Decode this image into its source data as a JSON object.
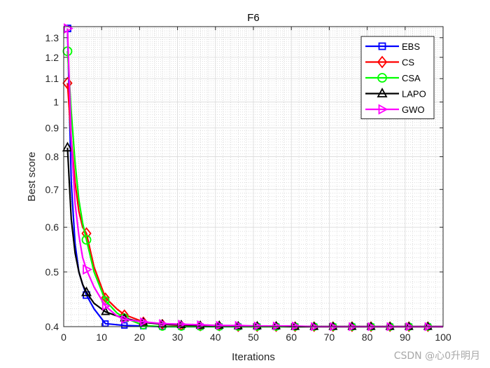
{
  "chart_data": {
    "type": "line",
    "title": "F6",
    "xlabel": "Iterations",
    "ylabel": "Best score",
    "xlim": [
      0,
      100
    ],
    "ylim": [
      0.4,
      1.36
    ],
    "yscale": "log",
    "grid": true,
    "minor_grid": true,
    "legend_position": "top-right",
    "xticks": [
      0,
      10,
      20,
      30,
      40,
      50,
      60,
      70,
      80,
      90,
      100
    ],
    "yticks": [
      0.4,
      0.5,
      0.6,
      0.7,
      0.8,
      0.9,
      1,
      1.1,
      1.2,
      1.3
    ],
    "ytick_labels": [
      "0.4",
      "0.5",
      "0.6",
      "0.7",
      "0.8",
      "0.9",
      "1",
      "1.1",
      "1.2",
      "1.3"
    ],
    "series": [
      {
        "name": "EBS",
        "color": "#0000ff",
        "marker": "square",
        "x": [
          1,
          2,
          3,
          4,
          5,
          6,
          8,
          11,
          16,
          21,
          26,
          31,
          36,
          41,
          46,
          51,
          56,
          61,
          66,
          71,
          76,
          81,
          86,
          91,
          96,
          100
        ],
        "values": [
          1.35,
          0.72,
          0.56,
          0.5,
          0.475,
          0.455,
          0.43,
          0.405,
          0.402,
          0.401,
          0.4,
          0.4,
          0.4,
          0.4,
          0.4,
          0.4,
          0.4,
          0.4,
          0.4,
          0.4,
          0.4,
          0.4,
          0.4,
          0.4,
          0.4,
          0.4
        ],
        "marker_x": [
          1,
          6,
          11,
          16,
          21,
          26,
          31,
          36,
          41,
          46,
          51,
          56,
          61,
          66,
          71,
          76,
          81,
          86,
          91,
          96
        ]
      },
      {
        "name": "CS",
        "color": "#ff0000",
        "marker": "diamond",
        "x": [
          1,
          2,
          3,
          4,
          5,
          6,
          8,
          11,
          14,
          16,
          21,
          26,
          31,
          36,
          41,
          46,
          51,
          56,
          61,
          66,
          71,
          76,
          81,
          86,
          91,
          96,
          100
        ],
        "values": [
          1.08,
          0.86,
          0.72,
          0.64,
          0.6,
          0.585,
          0.51,
          0.45,
          0.43,
          0.42,
          0.408,
          0.404,
          0.402,
          0.401,
          0.401,
          0.4,
          0.4,
          0.4,
          0.4,
          0.4,
          0.4,
          0.4,
          0.4,
          0.4,
          0.4,
          0.4,
          0.4
        ],
        "marker_x": [
          1,
          6,
          11,
          16,
          21,
          26,
          31,
          36,
          41,
          46,
          51,
          56,
          61,
          66,
          71,
          76,
          81,
          86,
          91,
          96
        ]
      },
      {
        "name": "CSA",
        "color": "#00ff00",
        "marker": "circle",
        "x": [
          1,
          2,
          3,
          4,
          5,
          6,
          8,
          11,
          14,
          16,
          21,
          26,
          31,
          36,
          41,
          46,
          51,
          56,
          61,
          66,
          71,
          76,
          81,
          86,
          91,
          96,
          100
        ],
        "values": [
          1.23,
          0.96,
          0.78,
          0.67,
          0.61,
          0.57,
          0.5,
          0.445,
          0.423,
          0.415,
          0.402,
          0.4,
          0.4,
          0.4,
          0.4,
          0.4,
          0.4,
          0.4,
          0.4,
          0.4,
          0.4,
          0.4,
          0.4,
          0.4,
          0.4,
          0.4,
          0.4
        ],
        "marker_x": [
          1,
          6,
          11,
          16,
          21,
          26,
          31,
          36,
          41,
          46,
          51,
          56,
          61,
          66,
          71,
          76,
          81,
          86,
          91,
          96
        ]
      },
      {
        "name": "LAPO",
        "color": "#000000",
        "marker": "triangle-up",
        "x": [
          1,
          2,
          3,
          4,
          5,
          6,
          8,
          11,
          14,
          16,
          21,
          26,
          31,
          36,
          41,
          46,
          51,
          56,
          61,
          66,
          71,
          76,
          81,
          86,
          91,
          96,
          100
        ],
        "values": [
          0.83,
          0.62,
          0.54,
          0.5,
          0.475,
          0.46,
          0.44,
          0.425,
          0.418,
          0.414,
          0.407,
          0.404,
          0.403,
          0.402,
          0.402,
          0.401,
          0.401,
          0.401,
          0.4,
          0.4,
          0.4,
          0.4,
          0.4,
          0.4,
          0.4,
          0.4,
          0.4
        ],
        "marker_x": [
          1,
          6,
          11,
          16,
          21,
          26,
          31,
          36,
          41,
          46,
          51,
          56,
          61,
          66,
          71,
          76,
          81,
          86,
          91,
          96
        ]
      },
      {
        "name": "GWO",
        "color": "#ff00ff",
        "marker": "triangle-right",
        "x": [
          1,
          2,
          3,
          4,
          5,
          6,
          8,
          11,
          14,
          16,
          21,
          26,
          31,
          36,
          41,
          46,
          51,
          56,
          61,
          66,
          71,
          76,
          81,
          86,
          91,
          96,
          100
        ],
        "values": [
          1.35,
          0.86,
          0.66,
          0.58,
          0.53,
          0.505,
          0.47,
          0.435,
          0.418,
          0.412,
          0.408,
          0.405,
          0.404,
          0.403,
          0.402,
          0.402,
          0.401,
          0.401,
          0.401,
          0.4,
          0.4,
          0.4,
          0.4,
          0.4,
          0.4,
          0.4,
          0.4
        ],
        "marker_x": [
          1,
          6,
          11,
          16,
          21,
          26,
          31,
          36,
          41,
          46,
          51,
          56,
          61,
          66,
          71,
          76,
          81,
          86,
          91,
          96
        ]
      }
    ]
  },
  "watermark": "CSDN @心0升明月"
}
